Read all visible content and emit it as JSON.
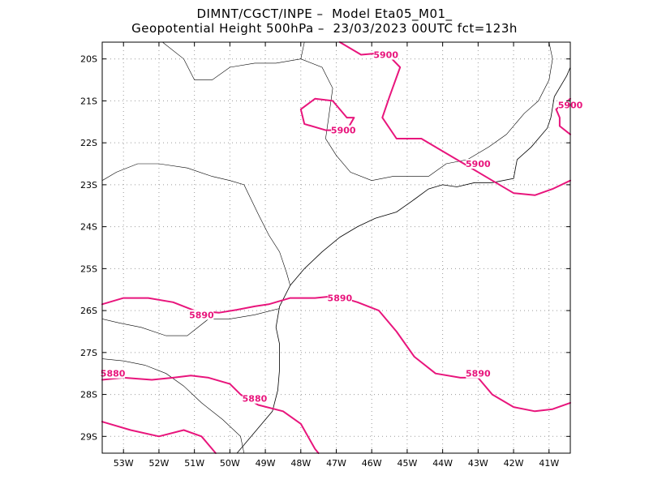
{
  "header": {
    "line1": "DIMNT/CGCT/INPE –  Model Eta05_M01_",
    "line2": "Geopotential Height 500hPa –  23/03/2023 00UTC fct=123h"
  },
  "map": {
    "lat_range": [
      -29.4,
      -19.6
    ],
    "lon_range": [
      -53.6,
      -40.4
    ],
    "lat_ticks": [
      {
        "value": -20,
        "label": "20S"
      },
      {
        "value": -21,
        "label": "21S"
      },
      {
        "value": -22,
        "label": "22S"
      },
      {
        "value": -23,
        "label": "23S"
      },
      {
        "value": -24,
        "label": "24S"
      },
      {
        "value": -25,
        "label": "25S"
      },
      {
        "value": -26,
        "label": "26S"
      },
      {
        "value": -27,
        "label": "27S"
      },
      {
        "value": -28,
        "label": "28S"
      },
      {
        "value": -29,
        "label": "29S"
      }
    ],
    "lon_ticks": [
      {
        "value": -53,
        "label": "53W"
      },
      {
        "value": -52,
        "label": "52W"
      },
      {
        "value": -51,
        "label": "51W"
      },
      {
        "value": -50,
        "label": "50W"
      },
      {
        "value": -49,
        "label": "49W"
      },
      {
        "value": -48,
        "label": "48W"
      },
      {
        "value": -47,
        "label": "47W"
      },
      {
        "value": -46,
        "label": "46W"
      },
      {
        "value": -45,
        "label": "45W"
      },
      {
        "value": -44,
        "label": "44W"
      },
      {
        "value": -43,
        "label": "43W"
      },
      {
        "value": -42,
        "label": "42W"
      },
      {
        "value": -41,
        "label": "41W"
      }
    ],
    "grid": true,
    "contour_color": "#e8157c",
    "contours": [
      {
        "level": "5900",
        "kind": "closed",
        "labels": [
          {
            "lon": -46.8,
            "lat": -21.7
          }
        ],
        "points": [
          [
            -46.7,
            -21.4
          ],
          [
            -47.1,
            -21.0
          ],
          [
            -47.6,
            -20.95
          ],
          [
            -48.0,
            -21.2
          ],
          [
            -47.9,
            -21.55
          ],
          [
            -47.3,
            -21.7
          ],
          [
            -46.7,
            -21.7
          ],
          [
            -46.5,
            -21.4
          ],
          [
            -46.7,
            -21.4
          ]
        ]
      },
      {
        "level": "5900",
        "kind": "open",
        "labels": [
          {
            "lon": -45.6,
            "lat": -19.9
          },
          {
            "lon": -43.0,
            "lat": -22.5
          }
        ],
        "points": [
          [
            -46.9,
            -19.6
          ],
          [
            -46.3,
            -19.9
          ],
          [
            -45.6,
            -19.85
          ],
          [
            -45.2,
            -20.2
          ],
          [
            -45.5,
            -20.9
          ],
          [
            -45.7,
            -21.4
          ],
          [
            -45.3,
            -21.9
          ],
          [
            -44.6,
            -21.9
          ],
          [
            -44.0,
            -22.2
          ],
          [
            -43.4,
            -22.5
          ],
          [
            -42.6,
            -22.9
          ],
          [
            -42.0,
            -23.2
          ],
          [
            -41.4,
            -23.25
          ],
          [
            -40.9,
            -23.1
          ],
          [
            -40.4,
            -22.9
          ]
        ]
      },
      {
        "level": "5900",
        "kind": "open",
        "labels": [
          {
            "lon": -40.4,
            "lat": -21.1
          }
        ],
        "points": [
          [
            -40.4,
            -20.95
          ],
          [
            -40.8,
            -21.2
          ],
          [
            -40.7,
            -21.4
          ],
          [
            -40.7,
            -21.6
          ],
          [
            -40.4,
            -21.8
          ]
        ]
      },
      {
        "level": "5890",
        "kind": "open",
        "labels": [
          {
            "lon": -50.8,
            "lat": -26.1
          },
          {
            "lon": -46.9,
            "lat": -25.7
          },
          {
            "lon": -43.0,
            "lat": -27.5
          }
        ],
        "points": [
          [
            -53.6,
            -25.85
          ],
          [
            -53.0,
            -25.7
          ],
          [
            -52.3,
            -25.7
          ],
          [
            -51.6,
            -25.8
          ],
          [
            -51.0,
            -26.0
          ],
          [
            -50.3,
            -26.05
          ],
          [
            -49.8,
            -25.98
          ],
          [
            -49.3,
            -25.9
          ],
          [
            -48.9,
            -25.85
          ],
          [
            -48.3,
            -25.7
          ],
          [
            -47.6,
            -25.7
          ],
          [
            -47.0,
            -25.65
          ],
          [
            -46.4,
            -25.8
          ],
          [
            -45.8,
            -26.0
          ],
          [
            -45.3,
            -26.5
          ],
          [
            -44.8,
            -27.1
          ],
          [
            -44.2,
            -27.5
          ],
          [
            -43.5,
            -27.6
          ],
          [
            -43.0,
            -27.6
          ],
          [
            -42.6,
            -28.0
          ],
          [
            -42.0,
            -28.3
          ],
          [
            -41.4,
            -28.4
          ],
          [
            -40.9,
            -28.35
          ],
          [
            -40.4,
            -28.2
          ]
        ]
      },
      {
        "level": "5880",
        "kind": "open",
        "labels": [
          {
            "lon": -53.3,
            "lat": -27.5
          },
          {
            "lon": -49.3,
            "lat": -28.1
          }
        ],
        "points": [
          [
            -53.6,
            -27.65
          ],
          [
            -53.0,
            -27.6
          ],
          [
            -52.2,
            -27.65
          ],
          [
            -51.6,
            -27.6
          ],
          [
            -51.1,
            -27.55
          ],
          [
            -50.6,
            -27.6
          ],
          [
            -50.0,
            -27.75
          ],
          [
            -49.7,
            -28.0
          ],
          [
            -49.2,
            -28.25
          ],
          [
            -48.5,
            -28.4
          ],
          [
            -48.0,
            -28.7
          ],
          [
            -47.6,
            -29.3
          ],
          [
            -47.5,
            -29.4
          ]
        ]
      },
      {
        "level": "5880",
        "kind": "open",
        "labels": [],
        "points": [
          [
            -53.6,
            -28.65
          ],
          [
            -52.8,
            -28.85
          ],
          [
            -52.0,
            -29.0
          ],
          [
            -51.3,
            -28.85
          ],
          [
            -50.8,
            -29.0
          ],
          [
            -50.4,
            -29.4
          ]
        ]
      }
    ],
    "coastline": [
      [
        -40.4,
        -20.2
      ],
      [
        -40.5,
        -20.4
      ],
      [
        -40.85,
        -20.9
      ],
      [
        -40.95,
        -21.4
      ],
      [
        -41.05,
        -21.65
      ],
      [
        -41.5,
        -22.1
      ],
      [
        -41.9,
        -22.4
      ],
      [
        -42.0,
        -22.85
      ],
      [
        -42.6,
        -22.95
      ],
      [
        -43.1,
        -22.95
      ],
      [
        -43.6,
        -23.05
      ],
      [
        -44.0,
        -23.0
      ],
      [
        -44.4,
        -23.1
      ],
      [
        -44.8,
        -23.35
      ],
      [
        -45.3,
        -23.65
      ],
      [
        -45.9,
        -23.8
      ],
      [
        -46.4,
        -24.0
      ],
      [
        -46.9,
        -24.25
      ],
      [
        -47.4,
        -24.6
      ],
      [
        -47.9,
        -25.0
      ],
      [
        -48.3,
        -25.4
      ],
      [
        -48.6,
        -25.9
      ],
      [
        -48.7,
        -26.4
      ],
      [
        -48.6,
        -26.8
      ],
      [
        -48.6,
        -27.4
      ],
      [
        -48.65,
        -27.9
      ],
      [
        -48.8,
        -28.4
      ],
      [
        -49.2,
        -28.8
      ],
      [
        -49.6,
        -29.2
      ],
      [
        -49.8,
        -29.4
      ]
    ],
    "borders": [
      [
        [
          -53.6,
          -22.9
        ],
        [
          -53.2,
          -22.7
        ],
        [
          -52.6,
          -22.5
        ],
        [
          -52.0,
          -22.5
        ],
        [
          -51.2,
          -22.6
        ],
        [
          -50.5,
          -22.8
        ],
        [
          -50.0,
          -22.9
        ],
        [
          -49.6,
          -23.0
        ],
        [
          -49.2,
          -23.7
        ],
        [
          -48.9,
          -24.2
        ],
        [
          -48.6,
          -24.6
        ],
        [
          -48.4,
          -25.1
        ],
        [
          -48.3,
          -25.4
        ]
      ],
      [
        [
          -53.6,
          -26.2
        ],
        [
          -53.1,
          -26.3
        ],
        [
          -52.5,
          -26.4
        ],
        [
          -51.8,
          -26.6
        ],
        [
          -51.2,
          -26.6
        ],
        [
          -50.6,
          -26.2
        ],
        [
          -50.0,
          -26.2
        ],
        [
          -49.3,
          -26.1
        ],
        [
          -48.6,
          -25.95
        ]
      ],
      [
        [
          -53.6,
          -27.15
        ],
        [
          -53.0,
          -27.2
        ],
        [
          -52.4,
          -27.3
        ],
        [
          -51.8,
          -27.5
        ],
        [
          -51.3,
          -27.8
        ],
        [
          -50.8,
          -28.2
        ],
        [
          -50.2,
          -28.6
        ],
        [
          -49.7,
          -29.0
        ],
        [
          -49.6,
          -29.4
        ]
      ],
      [
        [
          -51.3,
          -20.0
        ],
        [
          -51.0,
          -20.5
        ],
        [
          -50.5,
          -20.5
        ],
        [
          -50.0,
          -20.2
        ],
        [
          -49.3,
          -20.1
        ],
        [
          -48.7,
          -20.1
        ],
        [
          -48.0,
          -20.0
        ],
        [
          -47.4,
          -20.2
        ],
        [
          -47.1,
          -20.7
        ],
        [
          -47.2,
          -21.3
        ],
        [
          -47.3,
          -21.9
        ],
        [
          -47.0,
          -22.3
        ],
        [
          -46.6,
          -22.7
        ],
        [
          -46.0,
          -22.9
        ],
        [
          -45.4,
          -22.8
        ],
        [
          -44.8,
          -22.8
        ],
        [
          -44.4,
          -22.8
        ]
      ],
      [
        [
          -44.4,
          -22.8
        ],
        [
          -43.9,
          -22.5
        ],
        [
          -43.3,
          -22.4
        ],
        [
          -42.7,
          -22.1
        ],
        [
          -42.2,
          -21.8
        ],
        [
          -41.7,
          -21.3
        ],
        [
          -41.3,
          -21.0
        ],
        [
          -41.0,
          -20.5
        ],
        [
          -40.9,
          -20.0
        ],
        [
          -41.0,
          -19.6
        ]
      ],
      [
        [
          -51.3,
          -20.0
        ],
        [
          -51.9,
          -19.6
        ]
      ],
      [
        [
          -48.0,
          -20.0
        ],
        [
          -47.9,
          -19.6
        ]
      ]
    ]
  }
}
